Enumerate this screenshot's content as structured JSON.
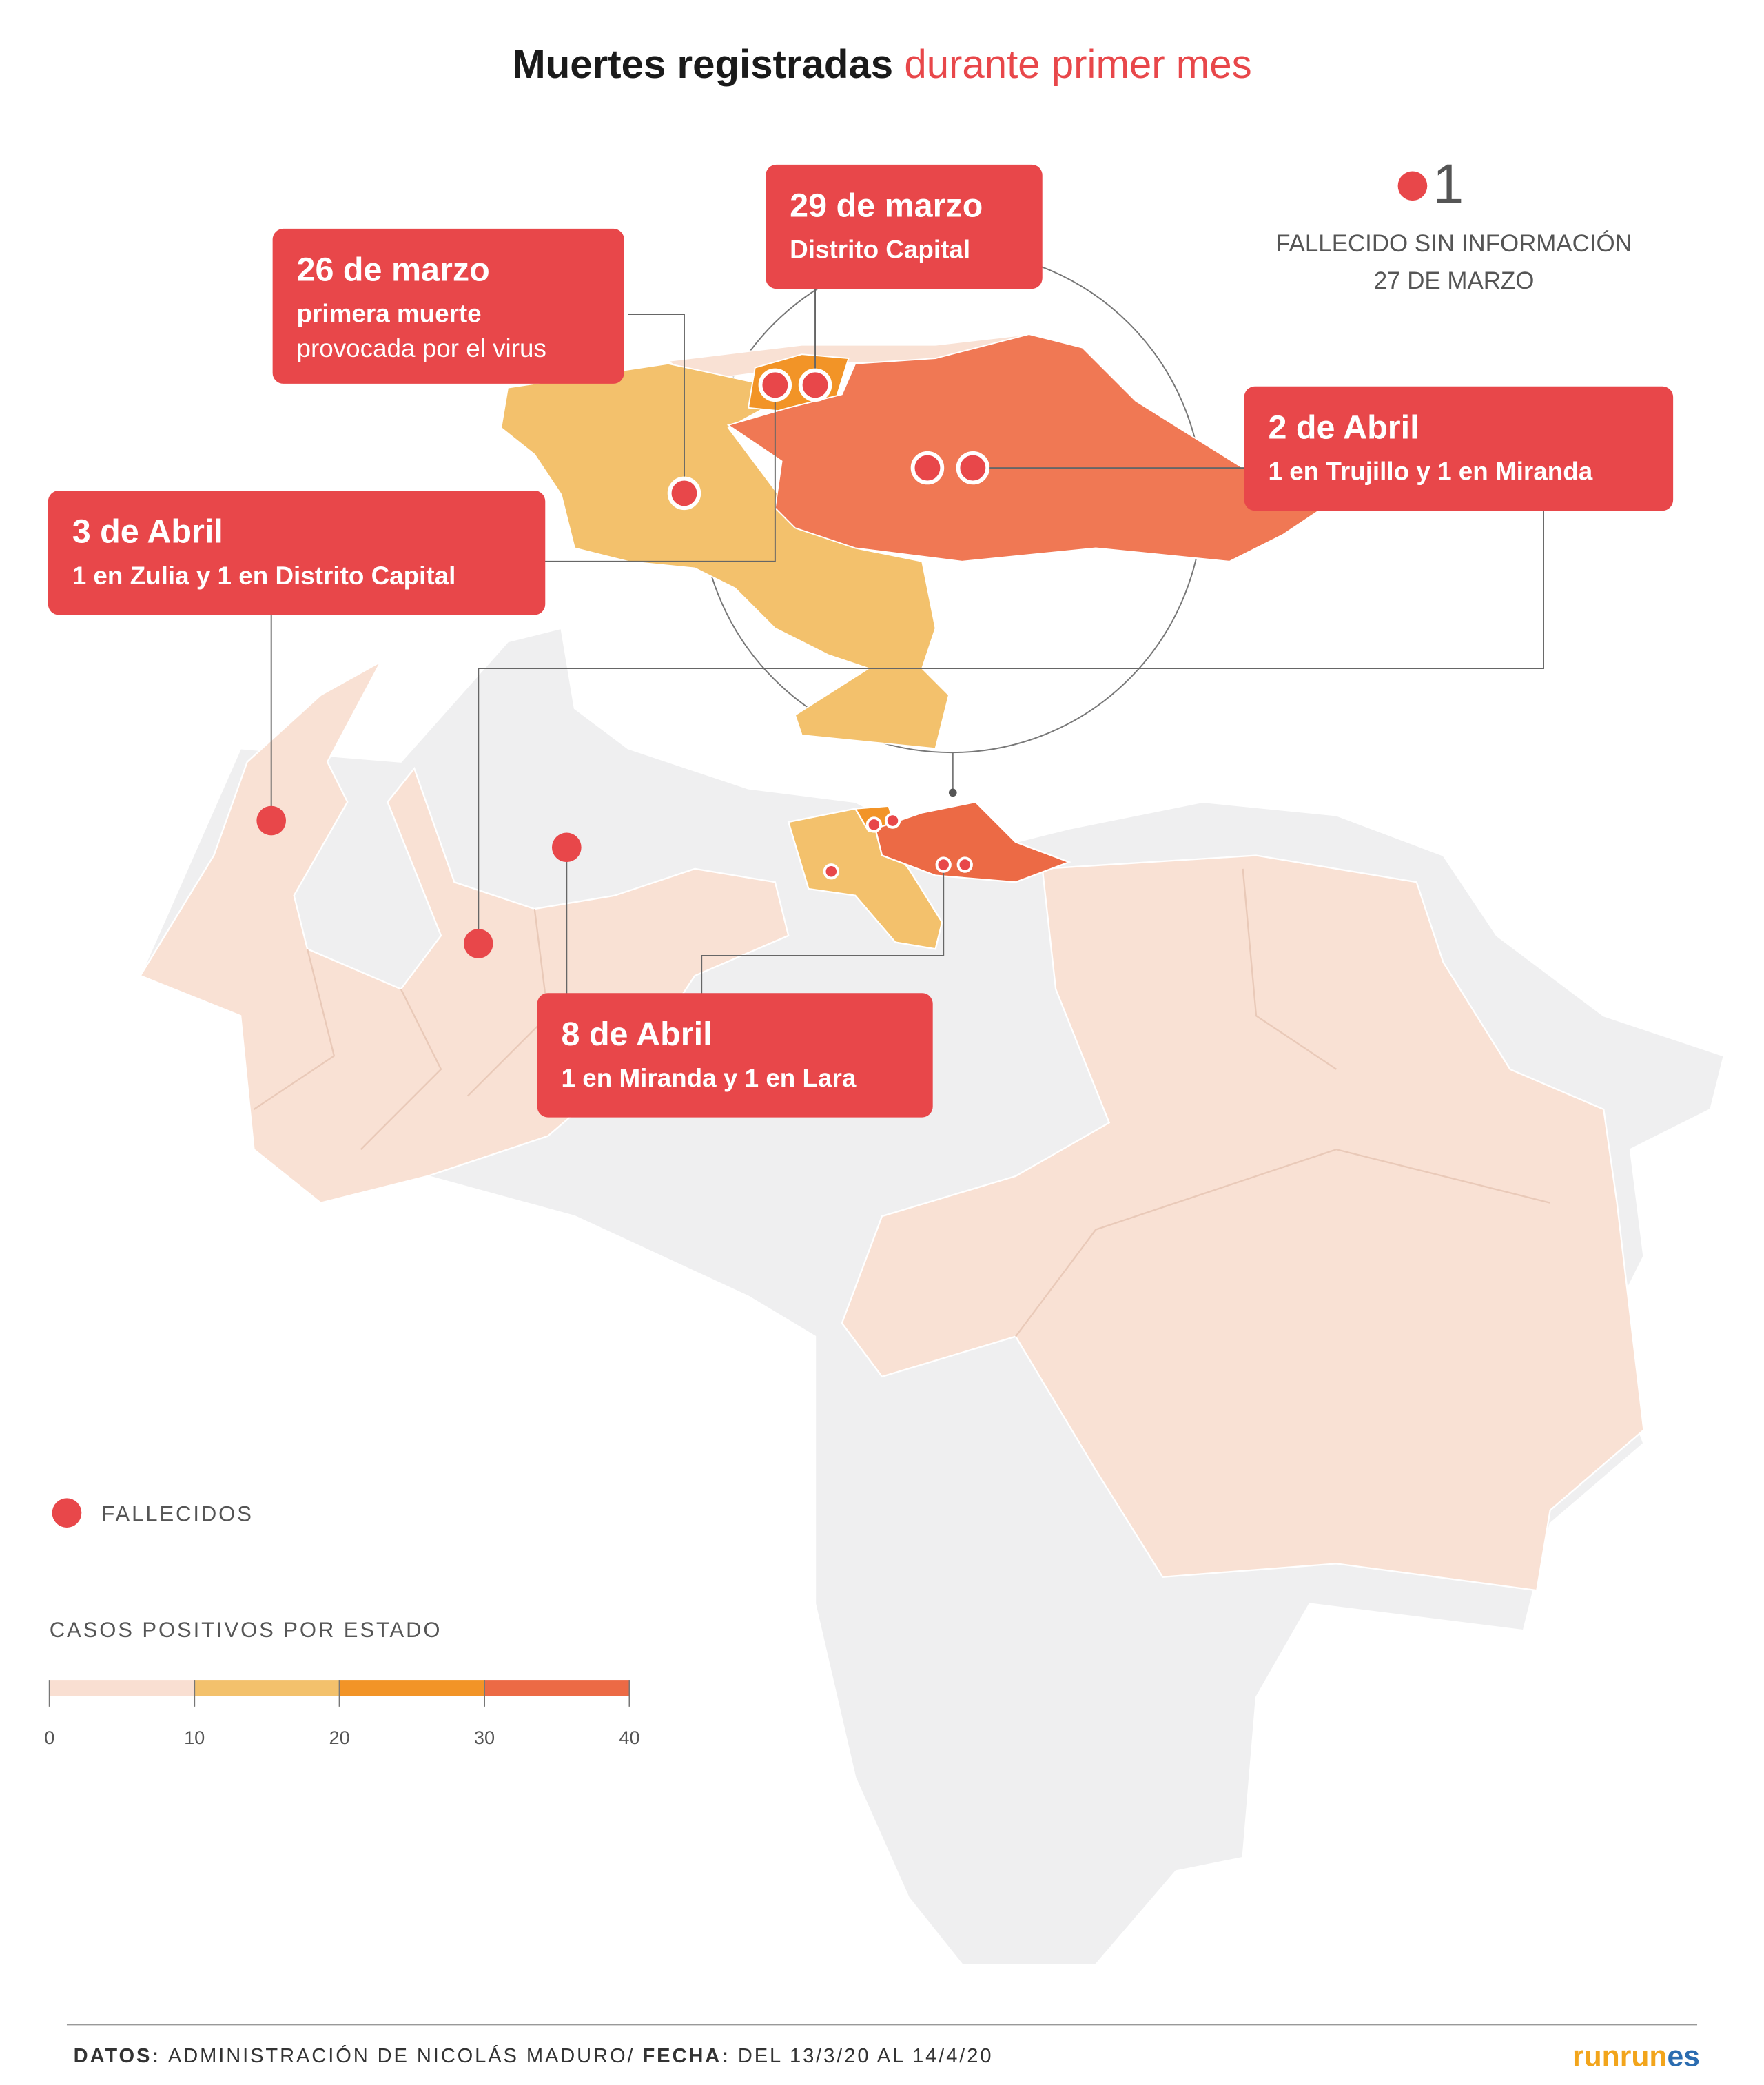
{
  "title": {
    "main": "Muertes registradas",
    "highlight": "durante primer mes"
  },
  "unknown_death": {
    "count": 1,
    "label": "FALLECIDO SIN INFORMACIÓN",
    "date": "27 DE MARZO"
  },
  "callouts": [
    {
      "date": "29 de marzo",
      "lines": [
        "Distrito Capital"
      ]
    },
    {
      "date": "26 de marzo",
      "lines": [
        "primera muerte",
        "provocada por el virus"
      ]
    },
    {
      "date": "2 de Abril",
      "lines": [
        "1 en Trujillo y 1 en Miranda"
      ]
    },
    {
      "date": "3 de Abril",
      "lines": [
        "1 en Zulia y 1 en Distrito Capital"
      ]
    },
    {
      "date": "8 de Abril",
      "lines": [
        "1 en Miranda y 1 en Lara"
      ]
    }
  ],
  "legend": {
    "deaths_label": "FALLECIDOS",
    "scale_title": "CASOS POSITIVOS POR ESTADO",
    "ticks": [
      0,
      10,
      20,
      30,
      40
    ],
    "colors": [
      "#f9dfd2",
      "#f3c16c",
      "#f29427",
      "#ec6a45"
    ]
  },
  "footer": {
    "source_label": "DATOS:",
    "source": "ADMINISTRACIÓN DE NICOLÁS MADURO/",
    "date_label": "FECHA:",
    "date_range": "DEL 13/3/20 AL 14/4/20",
    "brand_main": "runrun",
    "brand_end": "es"
  }
}
